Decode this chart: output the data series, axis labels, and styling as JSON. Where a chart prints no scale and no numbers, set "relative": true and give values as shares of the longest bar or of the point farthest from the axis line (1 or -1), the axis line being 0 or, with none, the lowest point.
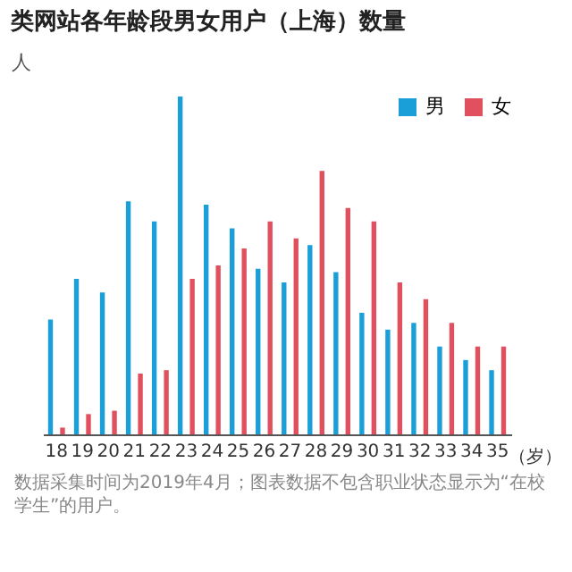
{
  "chart_data": {
    "type": "bar",
    "title": "类网站各年龄段男女用户（上海）数量",
    "ylabel": "人",
    "relative": true,
    "legend": "top right",
    "categories": [
      "18",
      "19",
      "20",
      "21",
      "22",
      "23",
      "24",
      "25",
      "26",
      "27",
      "28",
      "29",
      "30",
      "31",
      "32",
      "33",
      "34",
      "35"
    ],
    "xlabel": "（岁）",
    "series": [
      {
        "name": "男",
        "color": "#1a9fd9",
        "values": [
          0.34,
          0.46,
          0.42,
          0.69,
          0.63,
          1,
          0.68,
          0.61,
          0.49,
          0.45,
          0.56,
          0.48,
          0.36,
          0.31,
          0.33,
          0.26,
          0.22,
          0.19
        ]
      },
      {
        "name": "女",
        "color": "#e0505e",
        "values": [
          0.02,
          0.06,
          0.07,
          0.18,
          0.19,
          0.46,
          0.5,
          0.55,
          0.63,
          0.58,
          0.78,
          0.67,
          0.63,
          0.45,
          0.4,
          0.33,
          0.26,
          0.26
        ]
      }
    ],
    "annotations": [
      "数据采集时间为2019年4月；图表数据不包含职业状态显示为“在校学生”的用户。"
    ]
  }
}
